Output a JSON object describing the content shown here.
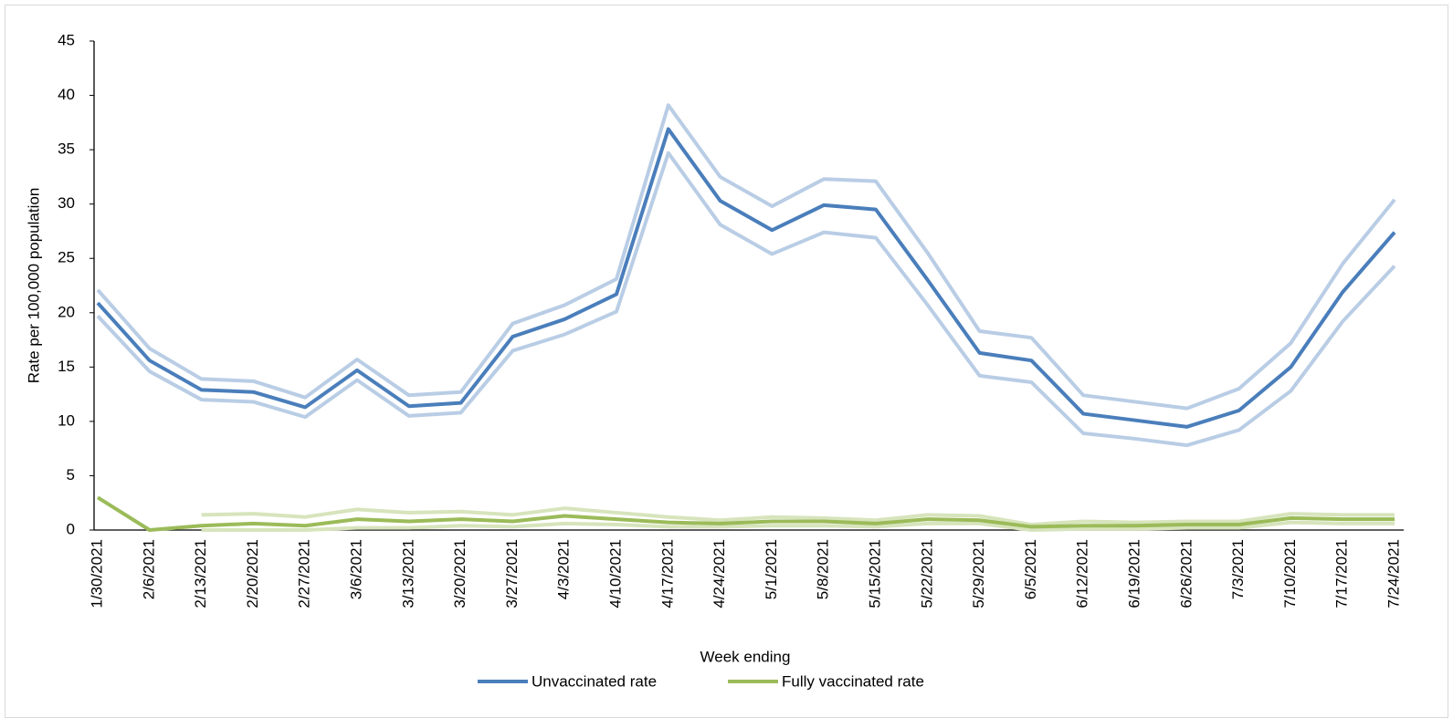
{
  "chart_data": {
    "type": "line",
    "x_label": "Week ending",
    "y_label": "Rate per 100,000 population",
    "categories": [
      "1/30/2021",
      "2/6/2021",
      "2/13/2021",
      "2/20/2021",
      "2/27/2021",
      "3/6/2021",
      "3/13/2021",
      "3/20/2021",
      "3/27/2021",
      "4/3/2021",
      "4/10/2021",
      "4/17/2021",
      "4/24/2021",
      "5/1/2021",
      "5/8/2021",
      "5/15/2021",
      "5/22/2021",
      "5/29/2021",
      "6/5/2021",
      "6/12/2021",
      "6/19/2021",
      "6/26/2021",
      "7/3/2021",
      "7/10/2021",
      "7/17/2021",
      "7/24/2021"
    ],
    "series": [
      {
        "name": "Unvaccinated rate",
        "color": "#4a7ebb",
        "values": [
          20.9,
          15.6,
          12.9,
          12.7,
          11.3,
          14.7,
          11.4,
          11.7,
          17.8,
          19.4,
          21.7,
          36.9,
          30.3,
          27.6,
          29.9,
          29.5,
          23.0,
          16.3,
          15.6,
          10.7,
          10.1,
          9.5,
          11.0,
          15.0,
          21.9,
          27.4
        ]
      },
      {
        "name": "Fully vaccinated rate",
        "color": "#9bbb59",
        "values": [
          3.0,
          0.0,
          0.4,
          0.6,
          0.4,
          1.0,
          0.8,
          1.0,
          0.8,
          1.3,
          1.0,
          0.7,
          0.6,
          0.8,
          0.8,
          0.6,
          1.0,
          0.9,
          0.3,
          0.4,
          0.4,
          0.5,
          0.5,
          1.1,
          1.0,
          1.0
        ]
      },
      {
        "color": "#b9cde5",
        "values": [
          22.1,
          16.7,
          13.9,
          13.7,
          12.2,
          15.7,
          12.4,
          12.7,
          19.0,
          20.7,
          23.1,
          39.1,
          32.5,
          29.8,
          32.3,
          32.1,
          25.5,
          18.3,
          17.7,
          12.4,
          11.8,
          11.2,
          13.0,
          17.2,
          24.5,
          30.4
        ]
      },
      {
        "color": "#b9cde5",
        "values": [
          19.7,
          14.6,
          12.0,
          11.8,
          10.4,
          13.8,
          10.5,
          10.8,
          16.5,
          18.0,
          20.1,
          34.7,
          28.1,
          25.4,
          27.4,
          26.9,
          20.7,
          14.2,
          13.6,
          8.9,
          8.4,
          7.8,
          9.2,
          12.8,
          19.2,
          24.3
        ]
      },
      {
        "color": "#d7e4bc",
        "values": [
          null,
          null,
          1.4,
          1.5,
          1.2,
          1.9,
          1.6,
          1.7,
          1.4,
          2.0,
          1.6,
          1.2,
          0.9,
          1.2,
          1.1,
          0.9,
          1.4,
          1.3,
          0.5,
          0.8,
          0.7,
          0.8,
          0.8,
          1.5,
          1.4,
          1.4
        ]
      },
      {
        "color": "#d7e4bc",
        "values": [
          null,
          null,
          0.0,
          0.0,
          0.0,
          0.2,
          0.2,
          0.4,
          0.3,
          0.6,
          0.5,
          0.3,
          0.3,
          0.4,
          0.4,
          0.3,
          0.6,
          0.6,
          0.0,
          0.1,
          0.1,
          0.2,
          0.2,
          0.7,
          0.6,
          0.6
        ]
      }
    ],
    "ylim": [
      0,
      45
    ],
    "yticks": [
      0,
      5,
      10,
      15,
      20,
      25,
      30,
      35,
      40,
      45
    ],
    "grid": false
  }
}
